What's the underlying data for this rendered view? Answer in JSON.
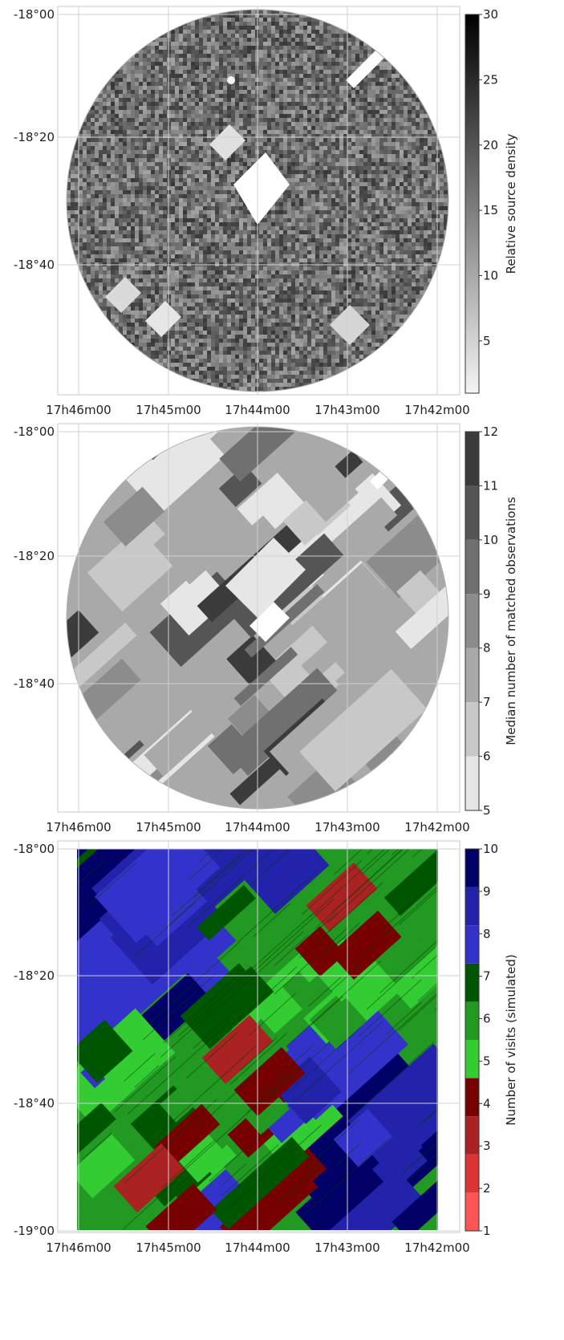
{
  "chart_data": [
    {
      "type": "heatmap",
      "title": "",
      "xlabel": "",
      "ylabel": "",
      "x_ticks": [
        "17h46m00",
        "17h45m00",
        "17h44m00",
        "17h43m00",
        "17h42m00"
      ],
      "y_ticks": [
        "-18°00",
        "-18°20",
        "-18°40"
      ],
      "colorbar": {
        "label": "Relative source density",
        "ticks": [
          5,
          10,
          15,
          20,
          25,
          30
        ],
        "range": [
          1,
          30
        ],
        "colormap": "continuous gray (light = low, black = high)"
      },
      "footprint": "circular",
      "grid": true
    },
    {
      "type": "heatmap",
      "title": "",
      "xlabel": "",
      "ylabel": "",
      "x_ticks": [
        "17h46m00",
        "17h45m00",
        "17h44m00",
        "17h43m00",
        "17h42m00"
      ],
      "y_ticks": [
        "-18°00",
        "-18°20",
        "-18°40"
      ],
      "colorbar": {
        "label": "Median number of matched observations",
        "ticks": [
          5,
          6,
          7,
          8,
          9,
          10,
          11,
          12
        ],
        "range": [
          5,
          12
        ],
        "colors": [
          "#e6e6e6",
          "#c8c8c8",
          "#a9a9a9",
          "#8c8c8c",
          "#707070",
          "#555555",
          "#3b3b3b"
        ],
        "colormap": "discrete gray steps"
      },
      "footprint": "circular",
      "grid": true
    },
    {
      "type": "heatmap",
      "title": "",
      "xlabel": "",
      "ylabel": "",
      "x_ticks": [
        "17h46m00",
        "17h45m00",
        "17h44m00",
        "17h43m00",
        "17h42m00"
      ],
      "y_ticks": [
        "-18°00",
        "-18°20",
        "-18°40",
        "-19°00"
      ],
      "colorbar": {
        "label": "Number of visits (simulated)",
        "ticks": [
          1,
          2,
          3,
          4,
          5,
          6,
          7,
          8,
          9,
          10
        ],
        "range": [
          1,
          10
        ],
        "colors": [
          "#ff5555",
          "#dd3333",
          "#aa2222",
          "#770000",
          "#33cc33",
          "#229922",
          "#005500",
          "#3333cc",
          "#2222aa",
          "#000066"
        ],
        "colormap": "discrete red-green-blue"
      },
      "footprint": "rectangular",
      "grid": true
    }
  ]
}
